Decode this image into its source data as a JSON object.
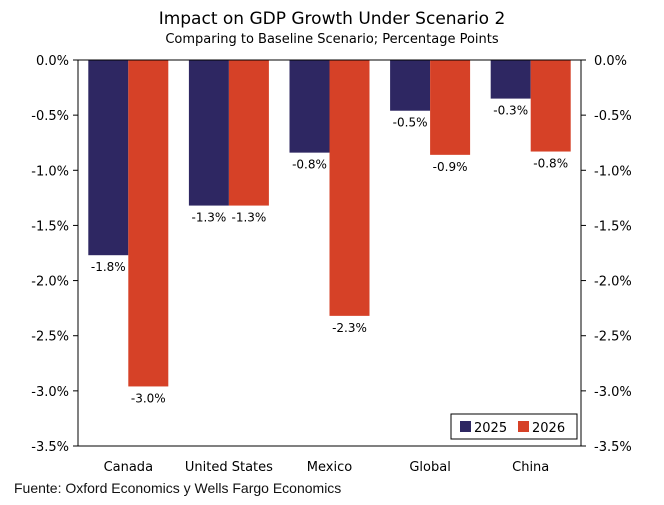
{
  "chart_data": {
    "type": "bar",
    "title": "Impact on GDP Growth Under Scenario 2",
    "subtitle": "Comparing to Baseline Scenario; Percentage Points",
    "categories": [
      "Canada",
      "United States",
      "Mexico",
      "Global",
      "China"
    ],
    "series": [
      {
        "name": "2025",
        "color": "#2e2762",
        "values": [
          -1.77,
          -1.32,
          -0.84,
          -0.46,
          -0.35
        ],
        "labels": [
          "-1.8%",
          "-1.3%",
          "-0.8%",
          "-0.5%",
          "-0.3%"
        ]
      },
      {
        "name": "2026",
        "color": "#d64127",
        "values": [
          -2.96,
          -1.32,
          -2.32,
          -0.86,
          -0.83
        ],
        "labels": [
          "-3.0%",
          "-1.3%",
          "-2.3%",
          "-0.9%",
          "-0.8%"
        ]
      }
    ],
    "ylim": [
      -3.5,
      0
    ],
    "yticks": [
      0,
      -0.5,
      -1,
      -1.5,
      -2,
      -2.5,
      -3,
      -3.5
    ],
    "ytick_labels": [
      "0.0%",
      "-0.5%",
      "-1.0%",
      "-1.5%",
      "-2.0%",
      "-2.5%",
      "-3.0%",
      "-3.5%"
    ],
    "xlabel": "",
    "ylabel": "",
    "legend": "bottom-right",
    "grid": false
  },
  "source": "Fuente: Oxford Economics y Wells Fargo Economics"
}
